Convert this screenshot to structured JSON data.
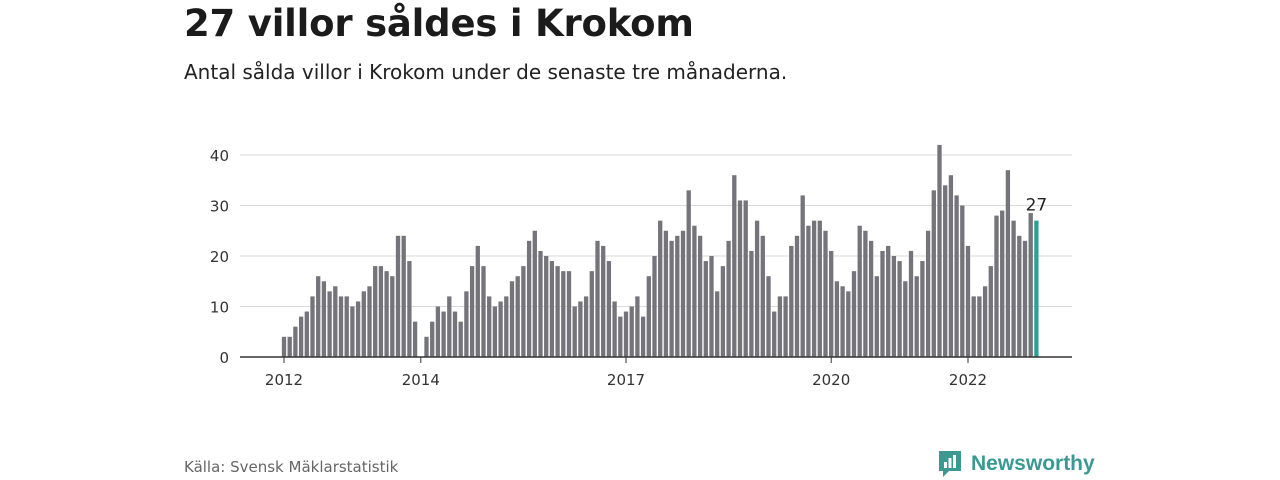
{
  "header": {
    "title": "27 villor såldes i Krokom",
    "subtitle": "Antal sålda villor i Krokom under de senaste tre månaderna."
  },
  "footer": {
    "source": "Källa: Svensk Mäklarstatistik",
    "brand": "Newsworthy"
  },
  "colors": {
    "bar": "#75747b",
    "highlight": "#2aa198",
    "grid": "#d9d9d9",
    "axis": "#333333",
    "brand": "#3a9a92"
  },
  "chart_data": {
    "type": "bar",
    "x_ticks": [
      "2012",
      "2014",
      "2017",
      "2020",
      "2022"
    ],
    "y_ticks": [
      "0",
      "10",
      "20",
      "30",
      "40"
    ],
    "ylim": [
      0,
      45
    ],
    "grid": true,
    "highlight_label": "27",
    "values": [
      4,
      4,
      6,
      8,
      9,
      12,
      16,
      15,
      13,
      14,
      12,
      12,
      10,
      11,
      13,
      14,
      18,
      18,
      17,
      16,
      24,
      24,
      19,
      7,
      0,
      4,
      7,
      10,
      9,
      12,
      9,
      7,
      13,
      18,
      22,
      18,
      12,
      10,
      11,
      12,
      15,
      16,
      18,
      23,
      25,
      21,
      20,
      19,
      18,
      17,
      17,
      10,
      11,
      12,
      17,
      23,
      22,
      19,
      11,
      8,
      9,
      10,
      12,
      8,
      16,
      20,
      27,
      25,
      23,
      24,
      25,
      33,
      26,
      24,
      19,
      20,
      13,
      18,
      23,
      36,
      31,
      31,
      21,
      27,
      24,
      16,
      9,
      12,
      12,
      22,
      24,
      32,
      26,
      27,
      27,
      25,
      21,
      15,
      14,
      13,
      17,
      26,
      25,
      23,
      16,
      21,
      22,
      20,
      19,
      15,
      21,
      16,
      19,
      25,
      33,
      42,
      34,
      36,
      32,
      30,
      22,
      12,
      12,
      14,
      18,
      28,
      29,
      37,
      27,
      24,
      23,
      28.5,
      27
    ]
  }
}
